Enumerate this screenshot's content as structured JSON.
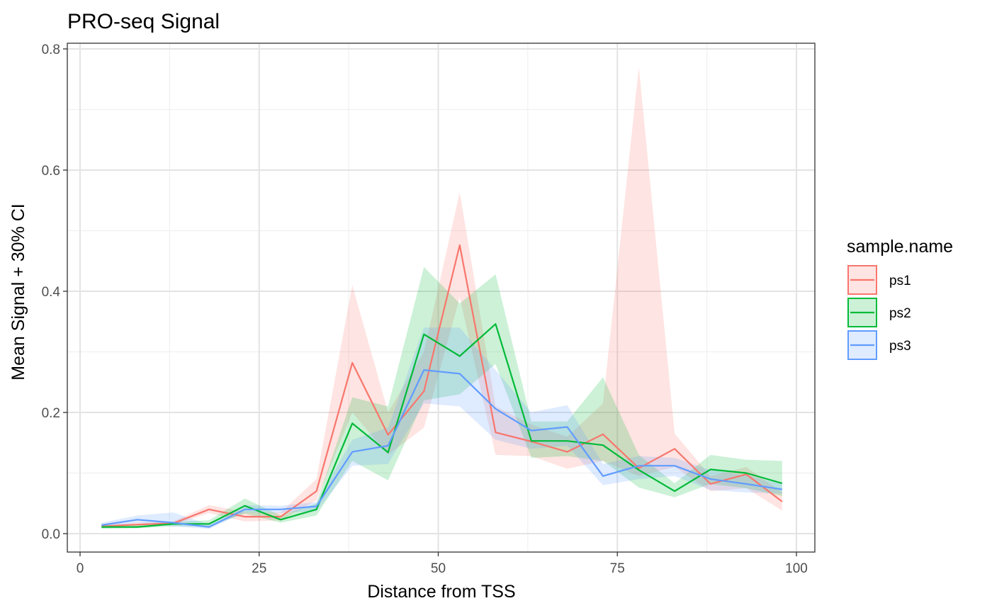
{
  "chart_data": {
    "type": "line",
    "title": "PRO-seq Signal",
    "xlabel": "Distance from TSS",
    "ylabel": "Mean Signal + 30% CI",
    "xlim": [
      0,
      100
    ],
    "ylim": [
      0,
      0.8
    ],
    "x_ticks": [
      0,
      25,
      50,
      75,
      100
    ],
    "y_ticks": [
      0.0,
      0.2,
      0.4,
      0.6,
      0.8
    ],
    "x_tick_labels": [
      "0",
      "25",
      "50",
      "75",
      "100"
    ],
    "y_tick_labels": [
      "0.0",
      "0.2",
      "0.4",
      "0.6",
      "0.8"
    ],
    "grid": true,
    "legend": {
      "title": "sample.name",
      "position": "right"
    },
    "x": [
      3,
      8,
      13,
      18,
      23,
      28,
      33,
      38,
      43,
      48,
      53,
      58,
      63,
      68,
      73,
      78,
      83,
      88,
      93,
      98
    ],
    "series": [
      {
        "name": "ps1",
        "color": "#F8766D",
        "values": [
          0.012,
          0.015,
          0.017,
          0.04,
          0.028,
          0.028,
          0.07,
          0.282,
          0.163,
          0.235,
          0.476,
          0.167,
          0.152,
          0.135,
          0.164,
          0.108,
          0.14,
          0.082,
          0.098,
          0.053
        ],
        "ci_low": [
          0.009,
          0.012,
          0.014,
          0.034,
          0.02,
          0.022,
          0.055,
          0.2,
          0.13,
          0.175,
          0.39,
          0.13,
          0.128,
          0.107,
          0.12,
          0.095,
          0.11,
          0.07,
          0.075,
          0.038
        ],
        "ci_high": [
          0.015,
          0.018,
          0.02,
          0.047,
          0.036,
          0.035,
          0.09,
          0.41,
          0.2,
          0.3,
          0.563,
          0.21,
          0.18,
          0.16,
          0.215,
          0.77,
          0.165,
          0.095,
          0.11,
          0.068
        ]
      },
      {
        "name": "ps2",
        "color": "#00BA38",
        "values": [
          0.011,
          0.011,
          0.016,
          0.016,
          0.046,
          0.023,
          0.04,
          0.182,
          0.134,
          0.329,
          0.293,
          0.346,
          0.153,
          0.153,
          0.146,
          0.105,
          0.07,
          0.106,
          0.1,
          0.083
        ],
        "ci_low": [
          0.008,
          0.009,
          0.012,
          0.012,
          0.033,
          0.018,
          0.03,
          0.12,
          0.088,
          0.22,
          0.23,
          0.28,
          0.125,
          0.128,
          0.12,
          0.076,
          0.06,
          0.082,
          0.075,
          0.062
        ],
        "ci_high": [
          0.014,
          0.015,
          0.02,
          0.022,
          0.058,
          0.03,
          0.05,
          0.225,
          0.21,
          0.44,
          0.38,
          0.428,
          0.185,
          0.185,
          0.258,
          0.13,
          0.083,
          0.13,
          0.122,
          0.12
        ]
      },
      {
        "name": "ps3",
        "color": "#619CFF",
        "values": [
          0.014,
          0.023,
          0.018,
          0.011,
          0.04,
          0.04,
          0.045,
          0.135,
          0.145,
          0.27,
          0.264,
          0.206,
          0.17,
          0.176,
          0.095,
          0.112,
          0.112,
          0.09,
          0.082,
          0.073
        ],
        "ci_low": [
          0.01,
          0.018,
          0.012,
          0.008,
          0.035,
          0.034,
          0.037,
          0.112,
          0.115,
          0.215,
          0.21,
          0.155,
          0.14,
          0.145,
          0.08,
          0.09,
          0.095,
          0.072,
          0.068,
          0.066
        ],
        "ci_high": [
          0.018,
          0.03,
          0.035,
          0.015,
          0.047,
          0.046,
          0.052,
          0.155,
          0.175,
          0.34,
          0.34,
          0.27,
          0.2,
          0.212,
          0.115,
          0.128,
          0.125,
          0.105,
          0.096,
          0.082
        ]
      }
    ]
  }
}
